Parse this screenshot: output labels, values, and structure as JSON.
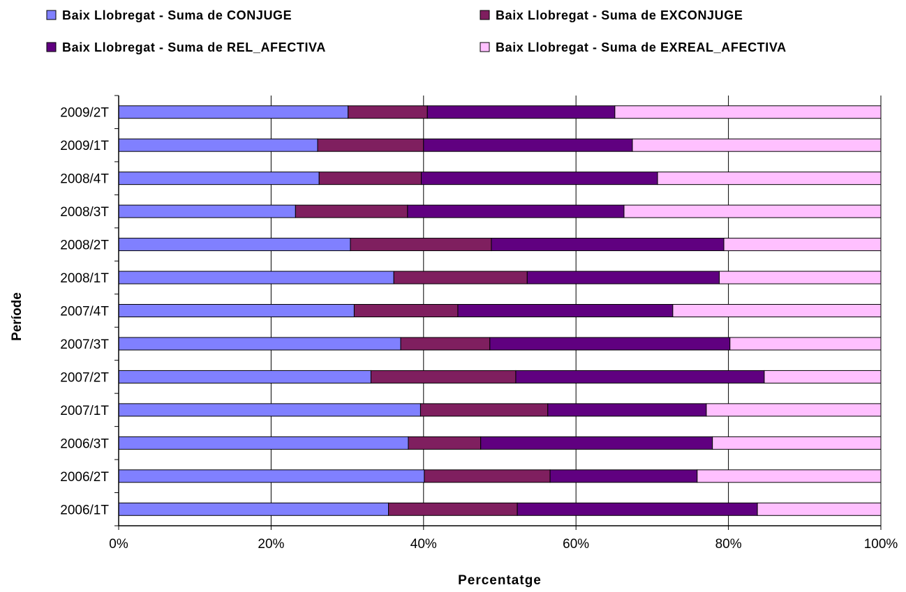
{
  "chart_data": {
    "type": "bar",
    "orientation": "horizontal",
    "stacking": "percent",
    "title": "",
    "xlabel": "Percentatge",
    "ylabel": "Període",
    "xlim": [
      0,
      100
    ],
    "xticks": [
      "0%",
      "20%",
      "40%",
      "60%",
      "80%",
      "100%"
    ],
    "grid": true,
    "legend_position": "top",
    "categories": [
      "2009/2T",
      "2009/1T",
      "2008/4T",
      "2008/3T",
      "2008/2T",
      "2008/1T",
      "2007/4T",
      "2007/3T",
      "2007/2T",
      "2007/1T",
      "2006/3T",
      "2006/2T",
      "2006/1T"
    ],
    "series": [
      {
        "name": "Baix Llobregat - Suma de CONJUGE",
        "color": "#8080ff",
        "values": [
          30.1,
          26.1,
          26.3,
          23.2,
          30.4,
          36.1,
          30.9,
          37.0,
          33.1,
          39.6,
          38.0,
          40.1,
          35.4
        ]
      },
      {
        "name": "Baix Llobregat - Suma de EXCONJUGE",
        "color": "#7f1f5f",
        "values": [
          10.4,
          13.9,
          13.4,
          14.7,
          18.5,
          17.5,
          13.6,
          11.7,
          19.0,
          16.7,
          9.5,
          16.5,
          16.9
        ]
      },
      {
        "name": "Baix Llobregat - Suma de REL_AFECTIVA",
        "color": "#600080",
        "values": [
          24.6,
          27.4,
          31.0,
          28.4,
          30.5,
          25.2,
          28.2,
          31.5,
          32.6,
          20.8,
          30.4,
          19.3,
          31.5
        ]
      },
      {
        "name": "Baix Llobregat - Suma de EXREAL_AFECTIVA",
        "color": "#ffc0ff",
        "values": [
          34.9,
          32.6,
          29.3,
          33.7,
          20.6,
          21.2,
          27.3,
          19.8,
          15.3,
          22.9,
          22.1,
          24.1,
          16.2
        ]
      }
    ]
  }
}
